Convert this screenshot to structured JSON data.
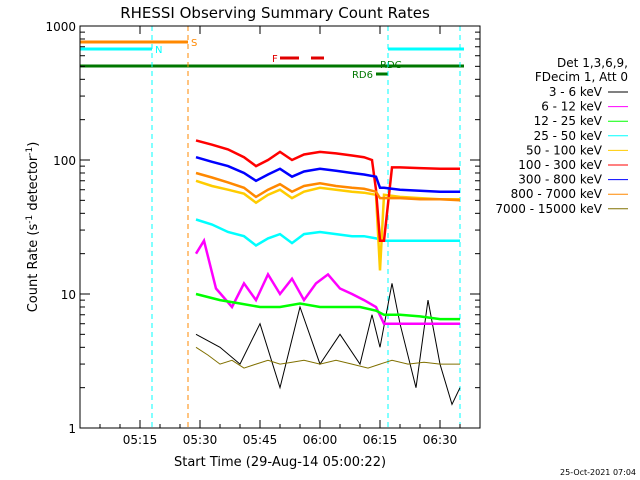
{
  "chart_data": {
    "type": "line",
    "title": "RHESSI Observing Summary Count Rates",
    "xlabel": "Start Time (29-Aug-14 05:00:22)",
    "ylabel_main": "Count Rate (s",
    "ylabel_sup1": "-1",
    "ylabel_mid": " detector",
    "ylabel_sup2": "-1",
    "ylabel_end": ")",
    "y_scale": "log",
    "ylim": [
      1,
      1000
    ],
    "xlim_minutes": [
      0,
      100
    ],
    "x_ticks": [
      {
        "label": "05:15",
        "minute": 15
      },
      {
        "label": "05:30",
        "minute": 30
      },
      {
        "label": "05:45",
        "minute": 45
      },
      {
        "label": "06:00",
        "minute": 60
      },
      {
        "label": "06:15",
        "minute": 75
      },
      {
        "label": "06:30",
        "minute": 90
      }
    ],
    "y_ticks": [
      {
        "label": "1",
        "value": 1
      },
      {
        "label": "10",
        "value": 10
      },
      {
        "label": "100",
        "value": 100
      },
      {
        "label": "1000",
        "value": 1000
      }
    ],
    "legend_header": [
      "Det 1,3,6,9,",
      "FDecim 1, Att 0"
    ],
    "legend_placement": "right",
    "series": [
      {
        "name": "3 - 6 keV",
        "color": "#000000",
        "x": [
          29,
          35,
          40,
          45,
          50,
          55,
          60,
          65,
          70,
          73,
          75,
          78,
          80,
          84,
          87,
          90,
          93,
          95
        ],
        "y": [
          5,
          4,
          3,
          6,
          2,
          8,
          3,
          5,
          3,
          7,
          4,
          12,
          6,
          2,
          9,
          3,
          1.5,
          2
        ]
      },
      {
        "name": "6 - 12 keV",
        "color": "#ff00ff",
        "x": [
          29,
          31,
          34,
          38,
          41,
          44,
          47,
          50,
          53,
          56,
          59,
          62,
          65,
          68,
          71,
          74,
          76,
          80,
          85,
          90,
          95
        ],
        "y": [
          20,
          25,
          11,
          8,
          12,
          9,
          14,
          10,
          13,
          9,
          12,
          14,
          11,
          10,
          9,
          8,
          6,
          6,
          6,
          6,
          6
        ]
      },
      {
        "name": "12 - 25 keV",
        "color": "#00ff00",
        "x": [
          29,
          35,
          40,
          45,
          50,
          55,
          60,
          65,
          70,
          74,
          76,
          80,
          85,
          90,
          95
        ],
        "y": [
          10,
          9,
          8.5,
          8,
          8,
          8.5,
          8,
          8,
          8,
          7.5,
          7,
          7,
          6.8,
          6.5,
          6.5
        ]
      },
      {
        "name": "25 - 50 keV",
        "color": "#00ffff",
        "x": [
          29,
          33,
          37,
          41,
          44,
          47,
          50,
          53,
          56,
          60,
          64,
          68,
          71,
          74,
          76,
          80,
          85,
          90,
          95
        ],
        "y": [
          36,
          33,
          29,
          27,
          23,
          26,
          28,
          24,
          28,
          29,
          28,
          27,
          27,
          26,
          25,
          25,
          25,
          25,
          25
        ]
      },
      {
        "name": "50 - 100 keV",
        "color": "#ffcc00",
        "x": [
          29,
          33,
          37,
          41,
          44,
          47,
          50,
          53,
          56,
          60,
          64,
          68,
          71,
          74,
          75,
          76,
          80,
          85,
          90,
          95
        ],
        "y": [
          70,
          64,
          60,
          56,
          48,
          55,
          60,
          52,
          58,
          62,
          60,
          58,
          57,
          55,
          15,
          55,
          53,
          52,
          51,
          51
        ]
      },
      {
        "name": "100 - 300 keV",
        "color": "#ff0000",
        "x": [
          29,
          33,
          37,
          41,
          44,
          47,
          50,
          53,
          56,
          60,
          64,
          68,
          71,
          73,
          74,
          75,
          76,
          78,
          80,
          85,
          90,
          95
        ],
        "y": [
          140,
          130,
          120,
          105,
          90,
          100,
          115,
          100,
          110,
          115,
          112,
          108,
          105,
          100,
          60,
          25,
          25,
          88,
          88,
          87,
          86,
          86
        ]
      },
      {
        "name": "300 - 800 keV",
        "color": "#0000ff",
        "x": [
          29,
          33,
          37,
          41,
          44,
          47,
          50,
          53,
          56,
          60,
          64,
          68,
          71,
          74,
          75,
          76,
          80,
          85,
          90,
          95
        ],
        "y": [
          105,
          97,
          90,
          80,
          70,
          78,
          86,
          75,
          82,
          86,
          83,
          80,
          78,
          75,
          62,
          62,
          60,
          59,
          58,
          58
        ]
      },
      {
        "name": "800 - 7000 keV",
        "color": "#ff8800",
        "x": [
          29,
          33,
          37,
          41,
          44,
          47,
          50,
          53,
          56,
          60,
          64,
          68,
          71,
          74,
          75,
          76,
          80,
          85,
          90,
          95
        ],
        "y": [
          80,
          74,
          68,
          62,
          53,
          60,
          66,
          58,
          64,
          67,
          64,
          62,
          61,
          58,
          52,
          52,
          52,
          51,
          51,
          50
        ]
      },
      {
        "name": "7000 - 15000 keV",
        "color": "#807000",
        "x": [
          29,
          32,
          35,
          38,
          41,
          44,
          47,
          50,
          53,
          56,
          60,
          64,
          68,
          72,
          75,
          78,
          82,
          86,
          90,
          95
        ],
        "y": [
          4,
          3.5,
          3,
          3.2,
          2.8,
          3,
          3.2,
          3,
          3.1,
          3.2,
          3,
          3.2,
          3,
          2.8,
          3,
          3.2,
          3,
          3.1,
          3,
          3
        ]
      }
    ],
    "flags": [
      {
        "label": "S",
        "color": "#ff8800",
        "x_start": 0,
        "x_end": 27
      },
      {
        "label": "N",
        "color": "#00ffff",
        "x_start": 0,
        "x_end": 18
      },
      {
        "label": "F",
        "color": "#e00000",
        "x_start": 50,
        "x_end": 61
      },
      {
        "label": "RD6",
        "color": "#007700",
        "x_start": 74,
        "x_end": 77
      },
      {
        "label": "RDC",
        "color": "#007700",
        "x_start": 0,
        "x_end": 96
      }
    ],
    "vertical_markers": [
      {
        "minute": 18,
        "color": "#00ffff"
      },
      {
        "minute": 27,
        "color": "#ff8800"
      },
      {
        "minute": 77,
        "color": "#00ffff"
      },
      {
        "minute": 95,
        "color": "#00ffff"
      }
    ],
    "grid": false
  },
  "timestamp": "25-Oct-2021 07:04"
}
